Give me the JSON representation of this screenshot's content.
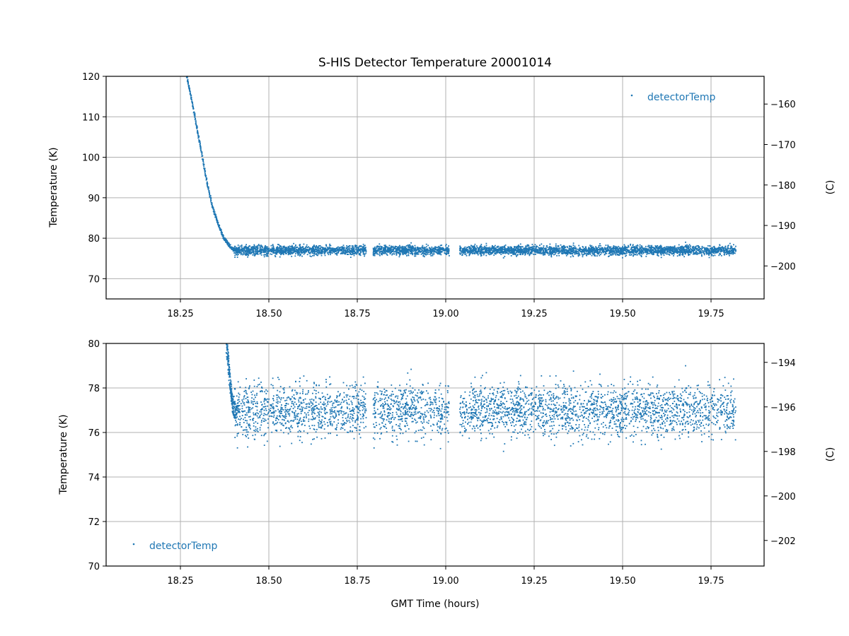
{
  "figure": {
    "title": "S-HIS Detector Temperature 20001014"
  },
  "chart_data": [
    {
      "type": "scatter",
      "title": "S-HIS Detector Temperature 20001014",
      "xlabel": "",
      "ylabel": "Temperature (K)",
      "ylabel_right": "(C)",
      "xlim": [
        18.04,
        19.9
      ],
      "ylim": [
        65,
        120
      ],
      "ylim_right": [
        -208.15,
        -153.15
      ],
      "x_ticks": [
        "18.25",
        "18.50",
        "18.75",
        "19.00",
        "19.25",
        "19.50",
        "19.75"
      ],
      "y_ticks": [
        "70",
        "80",
        "90",
        "100",
        "110",
        "120"
      ],
      "y_ticks_right": [
        "−200",
        "−190",
        "−180",
        "−170",
        "−160"
      ],
      "grid": true,
      "legend": {
        "placement": "top-right",
        "entries": [
          "detectorTemp"
        ]
      },
      "series": [
        {
          "name": "detectorTemp",
          "color": "#1f77b4",
          "marker": "point",
          "cooldown_points": [
            [
              18.268,
              120.0
            ],
            [
              18.28,
              115.0
            ],
            [
              18.295,
              108.0
            ],
            [
              18.31,
              101.0
            ],
            [
              18.325,
              94.0
            ],
            [
              18.34,
              88.0
            ],
            [
              18.355,
              84.0
            ],
            [
              18.37,
              80.5
            ],
            [
              18.385,
              78.5
            ],
            [
              18.4,
              77.2
            ],
            [
              18.42,
              76.8
            ]
          ],
          "steady_mean": 77.0,
          "steady_spread": 1.1,
          "segments": [
            [
              18.4,
              18.775
            ],
            [
              18.795,
              19.01
            ],
            [
              19.04,
              19.82
            ]
          ]
        }
      ]
    },
    {
      "type": "scatter",
      "title": "",
      "xlabel": "GMT Time (hours)",
      "ylabel": "Temperature (K)",
      "ylabel_right": "(C)",
      "xlim": [
        18.04,
        19.9
      ],
      "ylim": [
        70,
        80
      ],
      "ylim_right": [
        -203.15,
        -193.15
      ],
      "x_ticks": [
        "18.25",
        "18.50",
        "18.75",
        "19.00",
        "19.25",
        "19.50",
        "19.75"
      ],
      "y_ticks": [
        "70",
        "72",
        "74",
        "76",
        "78",
        "80"
      ],
      "y_ticks_right": [
        "−202",
        "−200",
        "−198",
        "−196",
        "−194"
      ],
      "grid": true,
      "legend": {
        "placement": "bottom-left",
        "entries": [
          "detectorTemp"
        ]
      },
      "series": [
        {
          "name": "detectorTemp",
          "color": "#1f77b4",
          "marker": "point",
          "cooldown_points": [
            [
              18.38,
              80.0
            ],
            [
              18.385,
              79.2
            ],
            [
              18.39,
              78.3
            ],
            [
              18.395,
              77.6
            ],
            [
              18.4,
              77.1
            ],
            [
              18.41,
              76.8
            ]
          ],
          "steady_mean": 77.0,
          "steady_spread": 1.1,
          "segments": [
            [
              18.4,
              18.775
            ],
            [
              18.795,
              19.01
            ],
            [
              19.04,
              19.82
            ]
          ]
        }
      ]
    }
  ]
}
